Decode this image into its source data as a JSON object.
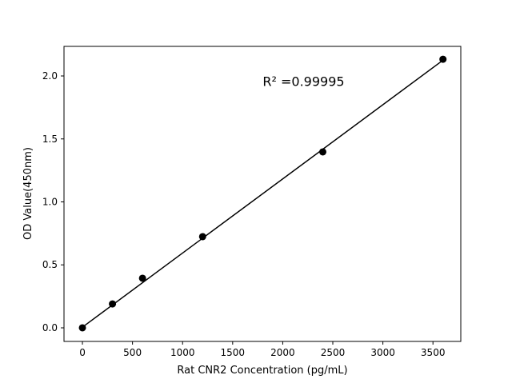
{
  "chart_data": {
    "type": "scatter",
    "title": "",
    "xlabel": "Rat CNR2 Concentration (pg/mL)",
    "ylabel": "OD Value(450nm)",
    "xlim": [
      -184,
      3778
    ],
    "ylim": [
      -0.108,
      2.235
    ],
    "xticks": [
      0,
      500,
      1000,
      1500,
      2000,
      2500,
      3000,
      3500
    ],
    "xtick_labels": [
      "0",
      "500",
      "1000",
      "1500",
      "2000",
      "2500",
      "3000",
      "3500"
    ],
    "yticks": [
      0.0,
      0.5,
      1.0,
      1.5,
      2.0
    ],
    "ytick_labels": [
      "0.0",
      "0.5",
      "1.0",
      "1.5",
      "2.0"
    ],
    "grid": false,
    "points": {
      "x": [
        0,
        300,
        600,
        1200,
        2400,
        3600
      ],
      "y": [
        0.0,
        0.19,
        0.394,
        0.724,
        1.397,
        2.133
      ]
    },
    "fit_line": {
      "x": [
        0,
        3600
      ],
      "y": [
        0.005,
        2.125
      ]
    },
    "annotation": {
      "text": "R² =0.99995",
      "x": 1800,
      "y": 1.92
    },
    "colors": {
      "points": "#000000",
      "line": "#000000"
    }
  }
}
